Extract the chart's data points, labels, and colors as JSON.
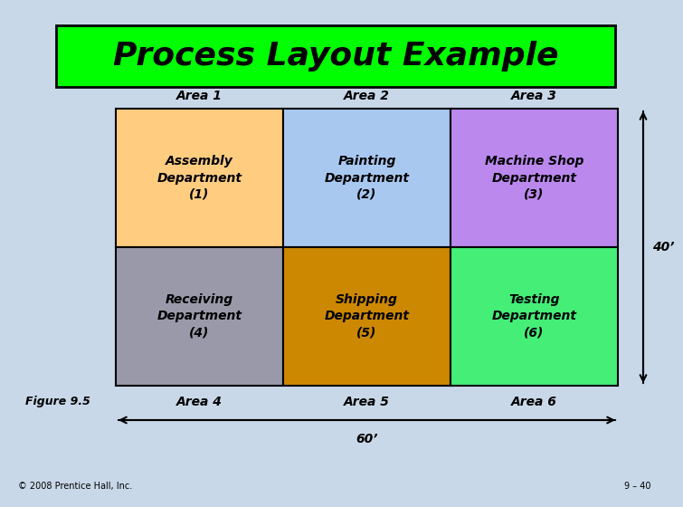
{
  "title": "Process Layout Example",
  "title_bg": "#00FF00",
  "background_color": "#C8D8E8",
  "cells": [
    {
      "row": 0,
      "col": 0,
      "label": "Assembly\nDepartment\n(1)",
      "color": "#FFCC80"
    },
    {
      "row": 0,
      "col": 1,
      "label": "Painting\nDepartment\n(2)",
      "color": "#A8C8F0"
    },
    {
      "row": 0,
      "col": 2,
      "label": "Machine Shop\nDepartment\n(3)",
      "color": "#BB88EE"
    },
    {
      "row": 1,
      "col": 0,
      "label": "Receiving\nDepartment\n(4)",
      "color": "#9999AA"
    },
    {
      "row": 1,
      "col": 1,
      "label": "Shipping\nDepartment\n(5)",
      "color": "#CC8800"
    },
    {
      "row": 1,
      "col": 2,
      "label": "Testing\nDepartment\n(6)",
      "color": "#44EE77"
    }
  ],
  "col_labels": [
    "Area 1",
    "Area 2",
    "Area 3"
  ],
  "row_bottom_labels": [
    "Area 4",
    "Area 5",
    "Area 6"
  ],
  "dim_40": "40’",
  "dim_60": "60’",
  "figure_label": "Figure 9.5",
  "copyright": "© 2008 Prentice Hall, Inc.",
  "slide_num": "9 – 40",
  "title_fontsize": 26,
  "cell_text_fontsize": 10,
  "area_label_fontsize": 10
}
